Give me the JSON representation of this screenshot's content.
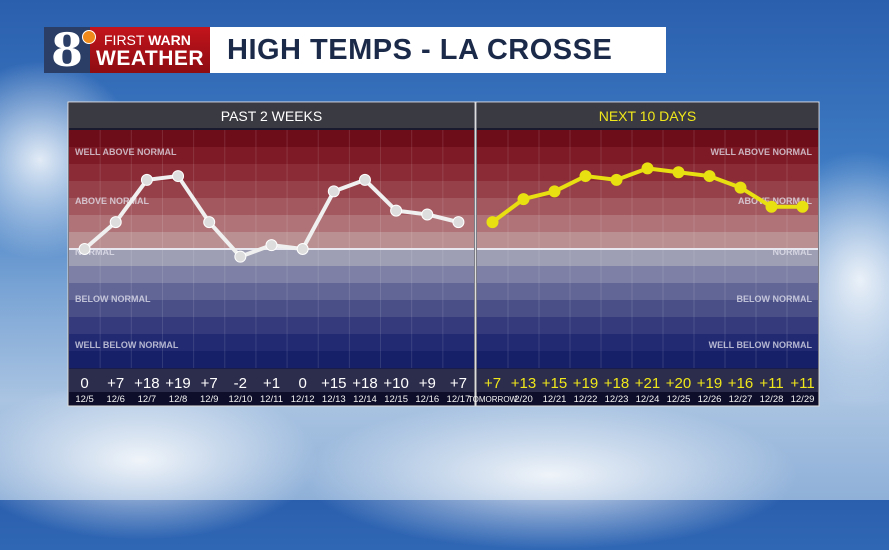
{
  "brand": {
    "number": "8",
    "line1a": "FIRST",
    "line1b": "WARN",
    "line2": "WEATHER"
  },
  "title": "HIGH TEMPS - LA CROSSE",
  "chart_data": [
    {
      "type": "line",
      "title": "PAST 2 WEEKS",
      "categories": [
        "12/5",
        "12/6",
        "12/7",
        "12/8",
        "12/9",
        "12/10",
        "12/11",
        "12/12",
        "12/13",
        "12/14",
        "12/15",
        "12/16",
        "12/17"
      ],
      "values": [
        0,
        7,
        18,
        19,
        7,
        -2,
        1,
        0,
        15,
        18,
        10,
        9,
        7
      ],
      "labels": [
        "0",
        "+7",
        "+18",
        "+19",
        "+7",
        "-2",
        "+1",
        "0",
        "+15",
        "+18",
        "+10",
        "+9",
        "+7"
      ],
      "band_labels": [
        "WELL ABOVE NORMAL",
        "ABOVE NORMAL",
        "NORMAL",
        "BELOW NORMAL",
        "WELL BELOW NORMAL"
      ],
      "ylim": [
        -31,
        31
      ],
      "line_color": "#f0f0f0",
      "title_color": "#ffffff"
    },
    {
      "type": "line",
      "title": "NEXT 10 DAYS",
      "categories": [
        "TOMORROW",
        "2/20",
        "12/21",
        "12/22",
        "12/23",
        "12/24",
        "12/25",
        "12/26",
        "12/27",
        "12/28",
        "12/29"
      ],
      "values": [
        7,
        13,
        15,
        19,
        18,
        21,
        20,
        19,
        16,
        11,
        11
      ],
      "labels": [
        "+7",
        "+13",
        "+15",
        "+19",
        "+18",
        "+21",
        "+20",
        "+19",
        "+16",
        "+11",
        "+11"
      ],
      "band_labels": [
        "WELL ABOVE NORMAL",
        "ABOVE NORMAL",
        "NORMAL",
        "BELOW NORMAL",
        "WELL BELOW NORMAL"
      ],
      "ylim": [
        -31,
        31
      ],
      "line_color": "#e8e010",
      "title_color": "#f0e81a"
    }
  ]
}
